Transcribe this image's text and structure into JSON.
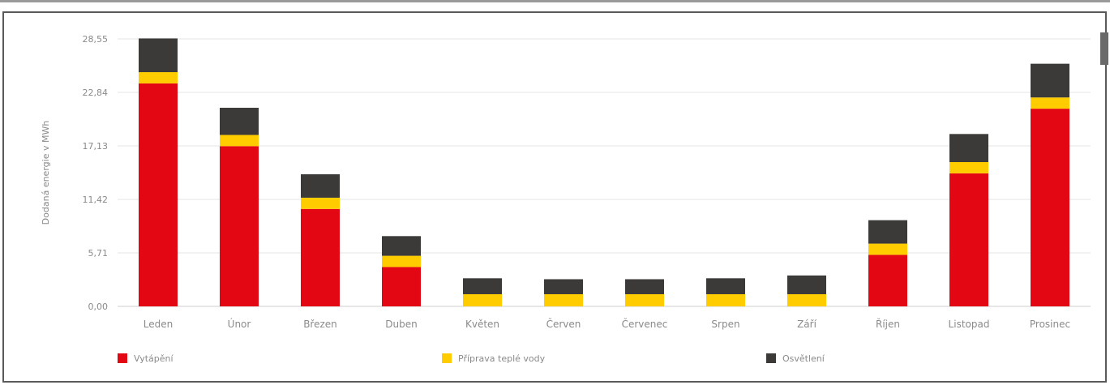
{
  "chart_data": {
    "type": "bar",
    "stacked": true,
    "ylabel": "Dodaná energie v MWh",
    "ylim": [
      0,
      28.55
    ],
    "yticks": [
      "0,00",
      "5,71",
      "11,42",
      "17,13",
      "22,84",
      "28,55"
    ],
    "grid": true,
    "legend_position": "bottom",
    "categories": [
      "Leden",
      "Únor",
      "Březen",
      "Duben",
      "Květen",
      "Červen",
      "Červenec",
      "Srpen",
      "Září",
      "Říjen",
      "Listopad",
      "Prosinec"
    ],
    "series": [
      {
        "name": "Vytápění",
        "color": "#e30613",
        "values": [
          23.8,
          17.1,
          10.4,
          4.2,
          0,
          0,
          0,
          0,
          0,
          5.5,
          14.2,
          21.1
        ]
      },
      {
        "name": "Příprava teplé vody",
        "color": "#ffcc00",
        "values": [
          1.2,
          1.2,
          1.2,
          1.2,
          1.3,
          1.3,
          1.3,
          1.3,
          1.3,
          1.2,
          1.2,
          1.2
        ]
      },
      {
        "name": "Osvětlení",
        "color": "#3c3a38",
        "values": [
          3.6,
          2.9,
          2.5,
          2.1,
          1.7,
          1.6,
          1.6,
          1.7,
          2.0,
          2.5,
          3.0,
          3.6
        ]
      }
    ]
  }
}
